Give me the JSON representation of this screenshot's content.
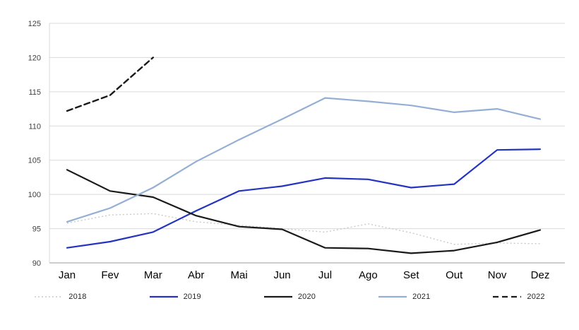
{
  "chart_data": {
    "type": "line",
    "title": "",
    "xlabel": "",
    "ylabel": "",
    "categories": [
      "Jan",
      "Fev",
      "Mar",
      "Abr",
      "Mai",
      "Jun",
      "Jul",
      "Ago",
      "Set",
      "Out",
      "Nov",
      "Dez"
    ],
    "ylim": [
      90,
      125
    ],
    "ytick_step": 5,
    "ytick_labels": [
      "90",
      "95",
      "100",
      "105",
      "110",
      "115",
      "120",
      "125"
    ],
    "grid": true,
    "legend_position": "bottom",
    "series": [
      {
        "name": "2018",
        "color": "#c9c9c9",
        "dash": "dotted",
        "values": [
          95.8,
          97.0,
          97.2,
          96.0,
          95.5,
          95.0,
          94.5,
          95.7,
          94.4,
          92.7,
          92.9,
          92.8
        ]
      },
      {
        "name": "2019",
        "color": "#2433c0",
        "dash": "solid",
        "values": [
          92.2,
          93.1,
          94.5,
          97.6,
          100.5,
          101.2,
          102.4,
          102.2,
          101.0,
          101.5,
          106.5,
          106.6
        ]
      },
      {
        "name": "2020",
        "color": "#1a1a1a",
        "dash": "solid",
        "values": [
          103.6,
          100.5,
          99.6,
          96.9,
          95.3,
          94.9,
          92.2,
          92.1,
          91.4,
          91.8,
          93.0,
          94.8
        ]
      },
      {
        "name": "2021",
        "color": "#94afd3",
        "dash": "solid",
        "values": [
          96.0,
          98.0,
          101.0,
          104.8,
          108.0,
          111.0,
          114.1,
          113.6,
          113.0,
          112.0,
          112.5,
          111.0
        ]
      },
      {
        "name": "2022",
        "color": "#1a1a1a",
        "dash": "dashed",
        "values": [
          112.2,
          114.5,
          120.0,
          null,
          null,
          null,
          null,
          null,
          null,
          null,
          null,
          null
        ]
      }
    ],
    "colors": {
      "gridline": "#d9d9d9",
      "axis": "#9b9b9b",
      "tick_label": "#404040",
      "month_label": "#000000"
    }
  }
}
